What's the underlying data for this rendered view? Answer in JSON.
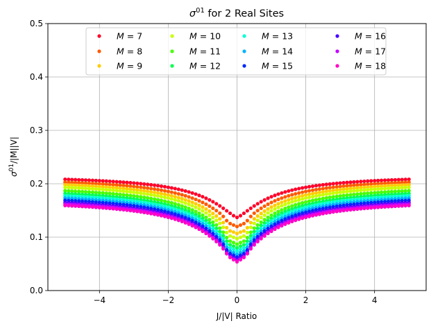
{
  "chart_data": {
    "type": "scatter",
    "title_prefix": "σ",
    "title_sup": "01",
    "title_suffix": " for 2 Real Sites",
    "xlabel": "J/|V| Ratio",
    "ylabel_prefix": "σ",
    "ylabel_sup": "01",
    "ylabel_suffix": "/|M||V|",
    "xlim": [
      -5.5,
      5.5
    ],
    "ylim": [
      0.0,
      0.5
    ],
    "x_ticks": [
      -4,
      -2,
      0,
      2,
      4
    ],
    "x_tick_labels": [
      "−4",
      "−2",
      "0",
      "2",
      "4"
    ],
    "y_ticks": [
      0.0,
      0.1,
      0.2,
      0.3,
      0.4,
      0.5
    ],
    "y_tick_labels": [
      "0.0",
      "0.1",
      "0.2",
      "0.3",
      "0.4",
      "0.5"
    ],
    "grid": true,
    "legend": {
      "placement": "top-center",
      "columns": 4
    },
    "x_sampling": {
      "start": -5.0,
      "stop": 5.0,
      "points": 101
    },
    "series": [
      {
        "name": "M = 7",
        "m_label": "M",
        "m_value": "7",
        "color": "#ff0029",
        "edge": 0.217,
        "center": 0.137,
        "dip": 0.0
      },
      {
        "name": "M = 8",
        "m_label": "M",
        "m_value": "8",
        "color": "#ff5a00",
        "edge": 0.213,
        "center": 0.12,
        "dip": 0.004
      },
      {
        "name": "M = 9",
        "m_label": "M",
        "m_value": "9",
        "color": "#ffcc00",
        "edge": 0.209,
        "center": 0.107,
        "dip": 0.006
      },
      {
        "name": "M = 10",
        "m_label": "M",
        "m_value": "10",
        "color": "#c8ff00",
        "edge": 0.205,
        "center": 0.097,
        "dip": 0.006
      },
      {
        "name": "M = 11",
        "m_label": "M",
        "m_value": "11",
        "color": "#48ff00",
        "edge": 0.199,
        "center": 0.087,
        "dip": 0.006
      },
      {
        "name": "M = 12",
        "m_label": "M",
        "m_value": "12",
        "color": "#00ff50",
        "edge": 0.194,
        "center": 0.08,
        "dip": 0.006
      },
      {
        "name": "M = 13",
        "m_label": "M",
        "m_value": "13",
        "color": "#00ffd5",
        "edge": 0.19,
        "center": 0.074,
        "dip": 0.006
      },
      {
        "name": "M = 14",
        "m_label": "M",
        "m_value": "14",
        "color": "#00b4ff",
        "edge": 0.186,
        "center": 0.068,
        "dip": 0.006
      },
      {
        "name": "M = 15",
        "m_label": "M",
        "m_value": "15",
        "color": "#0028ff",
        "edge": 0.182,
        "center": 0.063,
        "dip": 0.006
      },
      {
        "name": "M = 16",
        "m_label": "M",
        "m_value": "16",
        "color": "#4700ff",
        "edge": 0.178,
        "center": 0.059,
        "dip": 0.005
      },
      {
        "name": "M = 17",
        "m_label": "M",
        "m_value": "17",
        "color": "#c400ff",
        "edge": 0.175,
        "center": 0.056,
        "dip": 0.005
      },
      {
        "name": "M = 18",
        "m_label": "M",
        "m_value": "18",
        "color": "#ff00c8",
        "edge": 0.172,
        "center": 0.054,
        "dip": 0.004
      }
    ]
  }
}
